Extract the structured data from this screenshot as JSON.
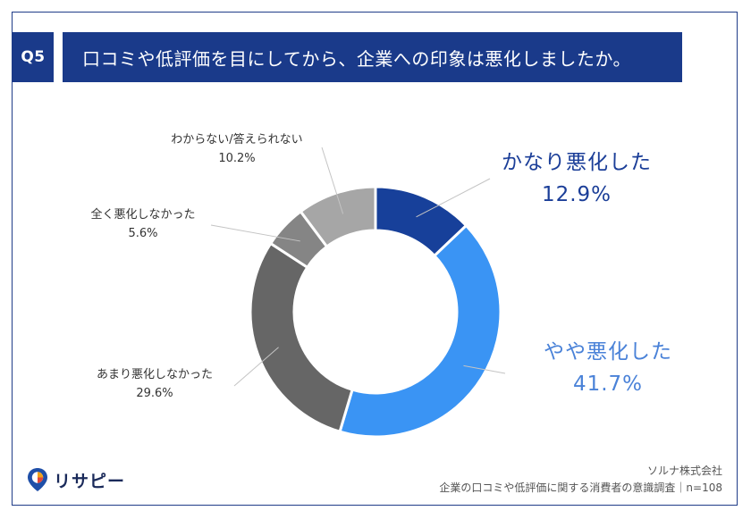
{
  "header": {
    "badge": "Q5",
    "question": "口コミや低評価を目にしてから、企業への印象は悪化しましたか。"
  },
  "chart_data": {
    "type": "pie",
    "donut": true,
    "slices": [
      {
        "label": "かなり悪化した",
        "value": 12.9,
        "display": "12.9%",
        "color": "#17409a"
      },
      {
        "label": "やや悪化した",
        "value": 41.7,
        "display": "41.7%",
        "color": "#3a94f4"
      },
      {
        "label": "あまり悪化しなかった",
        "value": 29.6,
        "display": "29.6%",
        "color": "#666666"
      },
      {
        "label": "全く悪化しなかった",
        "value": 5.6,
        "display": "5.6%",
        "color": "#858585"
      },
      {
        "label": "わからない/答えられない",
        "value": 10.2,
        "display": "10.2%",
        "color": "#a6a6a6"
      }
    ]
  },
  "logo": {
    "text": "リサピー"
  },
  "footer": {
    "company": "ソルナ株式会社",
    "survey": "企業の口コミや低評価に関する消費者の意識調査｜n=108"
  }
}
